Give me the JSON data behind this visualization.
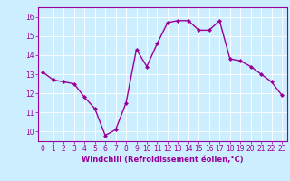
{
  "x": [
    0,
    1,
    2,
    3,
    4,
    5,
    6,
    7,
    8,
    9,
    10,
    11,
    12,
    13,
    14,
    15,
    16,
    17,
    18,
    19,
    20,
    21,
    22,
    23
  ],
  "y": [
    13.1,
    12.7,
    12.6,
    12.5,
    11.8,
    11.2,
    9.8,
    10.1,
    11.5,
    14.3,
    13.4,
    14.6,
    15.7,
    15.8,
    15.8,
    15.3,
    15.3,
    15.8,
    13.8,
    13.7,
    13.4,
    13.0,
    12.6,
    11.9
  ],
  "line_color": "#990099",
  "marker": "D",
  "marker_size": 2.0,
  "bg_color": "#cceeff",
  "grid_color": "#ffffff",
  "xlabel": "Windchill (Refroidissement éolien,°C)",
  "xlabel_color": "#990099",
  "tick_color": "#990099",
  "spine_color": "#990099",
  "ylim": [
    9.5,
    16.5
  ],
  "xlim": [
    -0.5,
    23.5
  ],
  "yticks": [
    10,
    11,
    12,
    13,
    14,
    15,
    16
  ],
  "xticks": [
    0,
    1,
    2,
    3,
    4,
    5,
    6,
    7,
    8,
    9,
    10,
    11,
    12,
    13,
    14,
    15,
    16,
    17,
    18,
    19,
    20,
    21,
    22,
    23
  ],
  "xtick_labels": [
    "0",
    "1",
    "2",
    "3",
    "4",
    "5",
    "6",
    "7",
    "8",
    "9",
    "10",
    "11",
    "12",
    "13",
    "14",
    "15",
    "16",
    "17",
    "18",
    "19",
    "20",
    "21",
    "22",
    "23"
  ],
  "line_width": 1.0,
  "tick_fontsize": 5.5,
  "xlabel_fontsize": 6.0
}
